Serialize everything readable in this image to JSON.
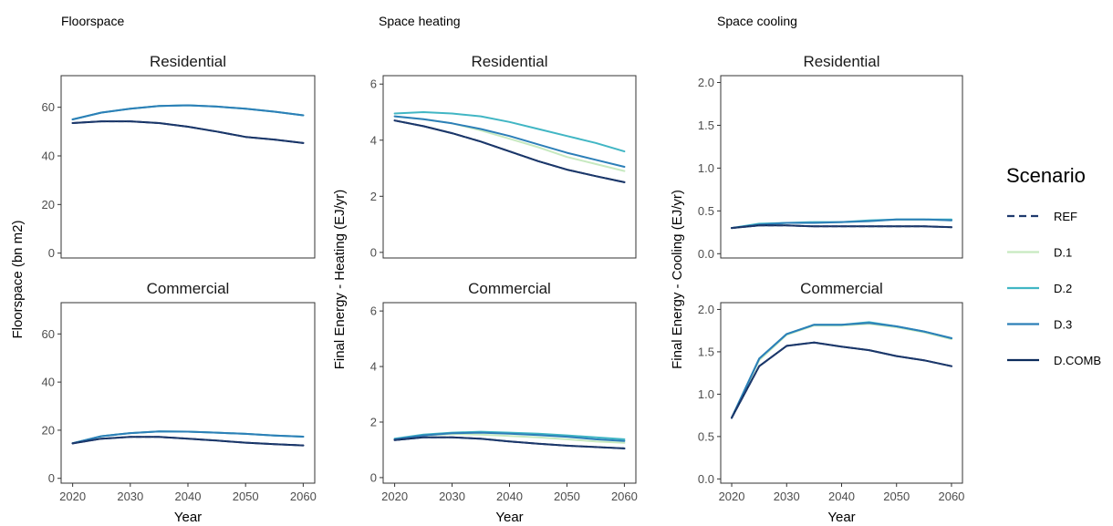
{
  "chart_data": [
    {
      "type": "line",
      "title": "Floorspace",
      "ylabel": "Floorspace (bn m2)",
      "xlabel": "Year",
      "x": [
        2020,
        2025,
        2030,
        2035,
        2040,
        2045,
        2050,
        2055,
        2060
      ],
      "xticks": [
        2020,
        2030,
        2040,
        2050,
        2060
      ],
      "ylim": [
        -2,
        73
      ],
      "yticks": [
        0,
        20,
        40,
        60
      ],
      "ytick_labels": [
        "0",
        "20",
        "40",
        "60"
      ],
      "facets": [
        {
          "facet": "Residential",
          "series": [
            {
              "name": "REF",
              "values": [
                53.5,
                54.2,
                54.2,
                53.5,
                52.0,
                50.0,
                47.8,
                46.7,
                45.3
              ]
            },
            {
              "name": "D.1",
              "values": [
                55.0,
                57.8,
                59.4,
                60.5,
                60.8,
                60.3,
                59.4,
                58.2,
                56.7
              ]
            },
            {
              "name": "D.2",
              "values": [
                55.0,
                57.8,
                59.4,
                60.5,
                60.8,
                60.3,
                59.4,
                58.2,
                56.7
              ]
            },
            {
              "name": "D.3",
              "values": [
                55.0,
                57.8,
                59.4,
                60.5,
                60.8,
                60.3,
                59.4,
                58.2,
                56.7
              ]
            },
            {
              "name": "D.COMB",
              "values": [
                53.5,
                54.2,
                54.2,
                53.5,
                52.0,
                50.0,
                47.8,
                46.7,
                45.3
              ]
            }
          ]
        },
        {
          "facet": "Commercial",
          "series": [
            {
              "name": "REF",
              "values": [
                14.5,
                16.5,
                17.2,
                17.2,
                16.5,
                15.7,
                14.8,
                14.2,
                13.7
              ]
            },
            {
              "name": "D.1",
              "values": [
                14.6,
                17.5,
                18.8,
                19.5,
                19.4,
                19.0,
                18.5,
                17.8,
                17.3
              ]
            },
            {
              "name": "D.2",
              "values": [
                14.6,
                17.5,
                18.8,
                19.5,
                19.4,
                19.0,
                18.5,
                17.8,
                17.3
              ]
            },
            {
              "name": "D.3",
              "values": [
                14.6,
                17.5,
                18.8,
                19.5,
                19.4,
                19.0,
                18.5,
                17.8,
                17.3
              ]
            },
            {
              "name": "D.COMB",
              "values": [
                14.5,
                16.5,
                17.2,
                17.2,
                16.5,
                15.7,
                14.8,
                14.2,
                13.7
              ]
            }
          ]
        }
      ]
    },
    {
      "type": "line",
      "title": "Space heating",
      "ylabel": "Final Energy - Heating (EJ/yr)",
      "xlabel": "Year",
      "x": [
        2020,
        2025,
        2030,
        2035,
        2040,
        2045,
        2050,
        2055,
        2060
      ],
      "xticks": [
        2020,
        2030,
        2040,
        2050,
        2060
      ],
      "ylim": [
        -0.2,
        6.3
      ],
      "yticks": [
        0,
        2,
        4,
        6
      ],
      "ytick_labels": [
        "0",
        "2",
        "4",
        "6"
      ],
      "facets": [
        {
          "facet": "Residential",
          "series": [
            {
              "name": "REF",
              "values": [
                4.7,
                4.5,
                4.25,
                3.95,
                3.6,
                3.25,
                2.95,
                2.72,
                2.5
              ]
            },
            {
              "name": "D.1",
              "values": [
                4.85,
                4.75,
                4.6,
                4.35,
                4.05,
                3.75,
                3.4,
                3.15,
                2.9
              ]
            },
            {
              "name": "D.2",
              "values": [
                4.95,
                5.0,
                4.95,
                4.85,
                4.65,
                4.4,
                4.15,
                3.9,
                3.6
              ]
            },
            {
              "name": "D.3",
              "values": [
                4.85,
                4.75,
                4.6,
                4.4,
                4.15,
                3.85,
                3.55,
                3.3,
                3.05
              ]
            },
            {
              "name": "D.COMB",
              "values": [
                4.7,
                4.5,
                4.25,
                3.95,
                3.6,
                3.25,
                2.95,
                2.72,
                2.5
              ]
            }
          ]
        },
        {
          "facet": "Commercial",
          "series": [
            {
              "name": "REF",
              "values": [
                1.35,
                1.45,
                1.45,
                1.4,
                1.3,
                1.22,
                1.15,
                1.1,
                1.05
              ]
            },
            {
              "name": "D.1",
              "values": [
                1.38,
                1.52,
                1.57,
                1.55,
                1.5,
                1.45,
                1.38,
                1.3,
                1.25
              ]
            },
            {
              "name": "D.2",
              "values": [
                1.4,
                1.55,
                1.62,
                1.65,
                1.62,
                1.58,
                1.52,
                1.45,
                1.38
              ]
            },
            {
              "name": "D.3",
              "values": [
                1.38,
                1.52,
                1.6,
                1.62,
                1.58,
                1.53,
                1.47,
                1.38,
                1.32
              ]
            },
            {
              "name": "D.COMB",
              "values": [
                1.35,
                1.45,
                1.45,
                1.4,
                1.3,
                1.22,
                1.15,
                1.1,
                1.05
              ]
            }
          ]
        }
      ]
    },
    {
      "type": "line",
      "title": "Space cooling",
      "ylabel": "Final Energy - Cooling (EJ/yr)",
      "xlabel": "Year",
      "x": [
        2020,
        2025,
        2030,
        2035,
        2040,
        2045,
        2050,
        2055,
        2060
      ],
      "xticks": [
        2020,
        2030,
        2040,
        2050,
        2060
      ],
      "ylim": [
        -0.05,
        2.08
      ],
      "yticks": [
        0,
        0.5,
        1,
        1.5,
        2
      ],
      "ytick_labels": [
        "0.0",
        "0.5",
        "1.0",
        "1.5",
        "2.0"
      ],
      "facets": [
        {
          "facet": "Residential",
          "series": [
            {
              "name": "REF",
              "values": [
                0.3,
                0.33,
                0.33,
                0.32,
                0.32,
                0.32,
                0.32,
                0.32,
                0.31
              ]
            },
            {
              "name": "D.1",
              "values": [
                0.3,
                0.34,
                0.36,
                0.36,
                0.37,
                0.38,
                0.4,
                0.4,
                0.39
              ]
            },
            {
              "name": "D.2",
              "values": [
                0.3,
                0.35,
                0.36,
                0.37,
                0.37,
                0.39,
                0.4,
                0.4,
                0.4
              ]
            },
            {
              "name": "D.3",
              "values": [
                0.3,
                0.34,
                0.36,
                0.36,
                0.37,
                0.38,
                0.4,
                0.4,
                0.39
              ]
            },
            {
              "name": "D.COMB",
              "values": [
                0.3,
                0.33,
                0.33,
                0.32,
                0.32,
                0.32,
                0.32,
                0.32,
                0.31
              ]
            }
          ]
        },
        {
          "facet": "Commercial",
          "series": [
            {
              "name": "REF",
              "values": [
                0.72,
                1.33,
                1.57,
                1.61,
                1.56,
                1.52,
                1.45,
                1.4,
                1.33
              ]
            },
            {
              "name": "D.1",
              "values": [
                0.72,
                1.4,
                1.7,
                1.81,
                1.81,
                1.83,
                1.79,
                1.73,
                1.65
              ]
            },
            {
              "name": "D.2",
              "values": [
                0.72,
                1.42,
                1.71,
                1.82,
                1.82,
                1.85,
                1.8,
                1.74,
                1.66
              ]
            },
            {
              "name": "D.3",
              "values": [
                0.72,
                1.42,
                1.71,
                1.82,
                1.82,
                1.84,
                1.8,
                1.74,
                1.66
              ]
            },
            {
              "name": "D.COMB",
              "values": [
                0.72,
                1.33,
                1.57,
                1.61,
                1.56,
                1.52,
                1.45,
                1.4,
                1.33
              ]
            }
          ]
        }
      ]
    }
  ],
  "legend": {
    "title": "Scenario",
    "position": "right",
    "items": [
      {
        "name": "REF",
        "color": "#1f3a6e",
        "dashed": true
      },
      {
        "name": "D.1",
        "color": "#c7e9c0",
        "dashed": false
      },
      {
        "name": "D.2",
        "color": "#41b6c4",
        "dashed": false
      },
      {
        "name": "D.3",
        "color": "#2c7fb8",
        "dashed": false
      },
      {
        "name": "D.COMB",
        "color": "#0c2c5c",
        "dashed": false
      }
    ]
  }
}
